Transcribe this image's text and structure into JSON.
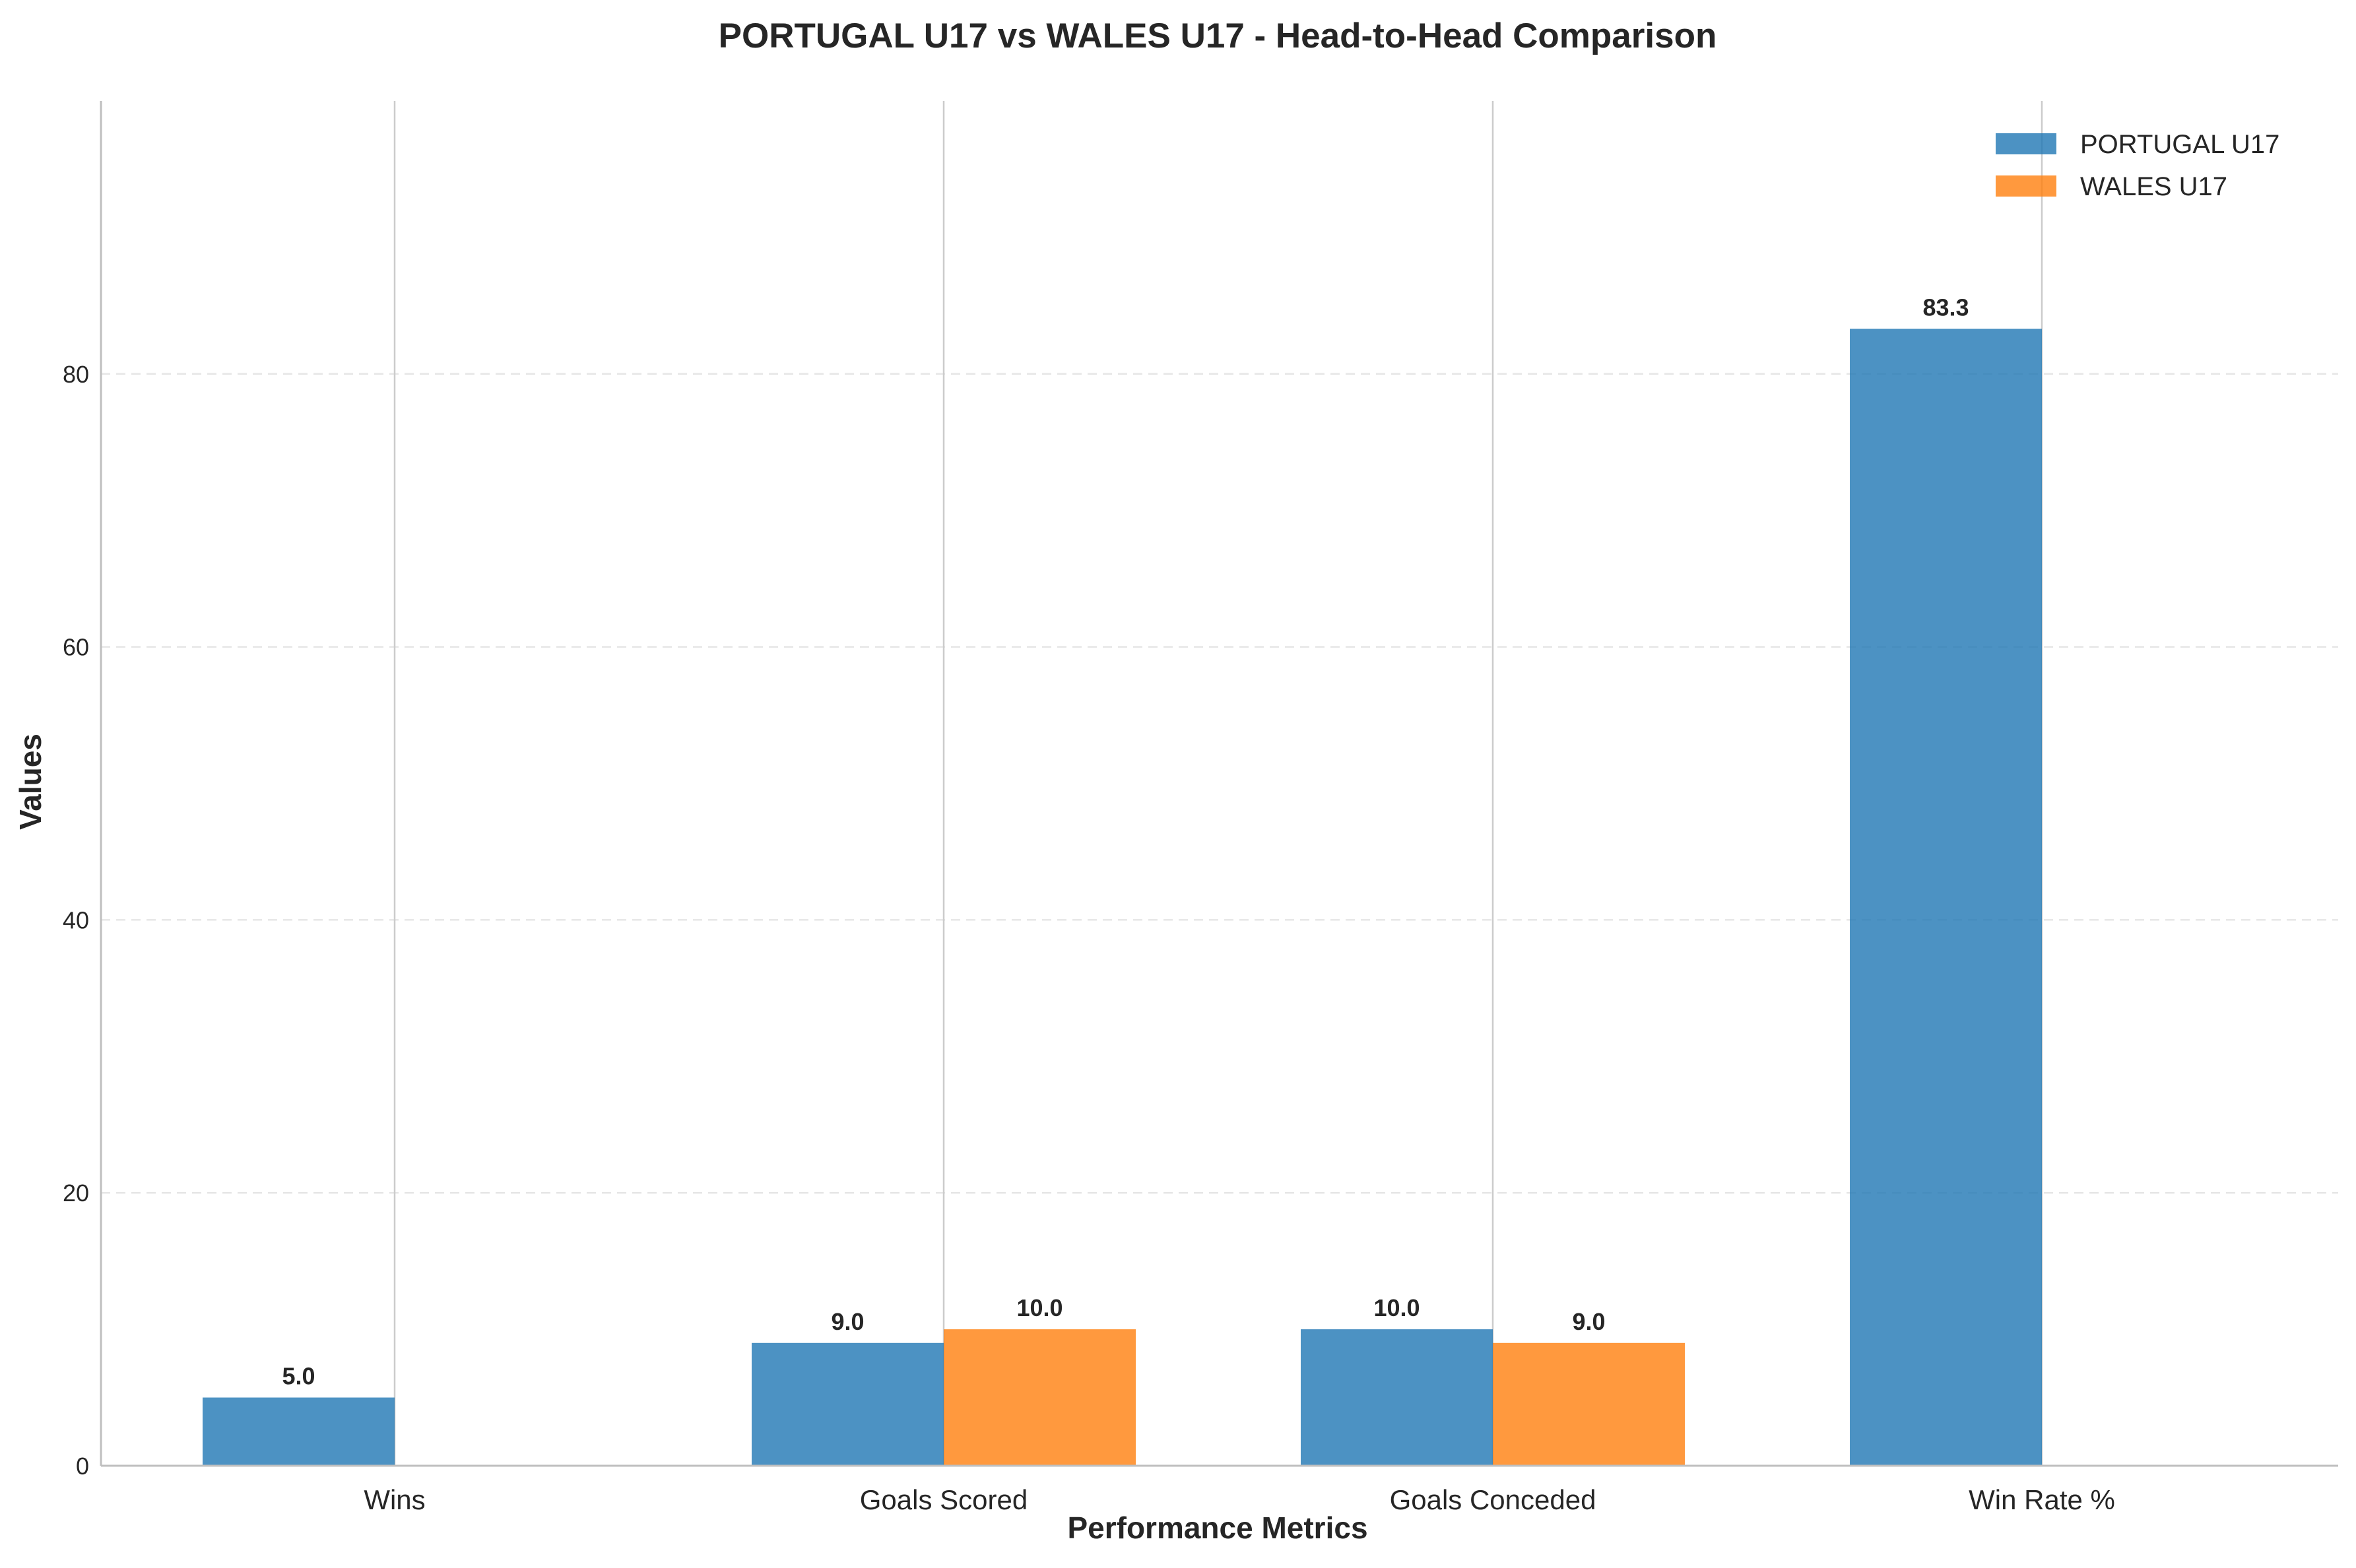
{
  "chart_data": {
    "type": "bar",
    "title": "PORTUGAL U17 vs WALES U17 - Head-to-Head Comparison",
    "xlabel": "Performance Metrics",
    "ylabel": "Values",
    "categories": [
      "Wins",
      "Goals Scored",
      "Goals Conceded",
      "Win Rate %"
    ],
    "series": [
      {
        "name": "PORTUGAL U17",
        "color": "#1f77b4",
        "values": [
          5.0,
          9.0,
          10.0,
          83.3
        ],
        "labels": [
          "5.0",
          "9.0",
          "10.0",
          "83.3"
        ]
      },
      {
        "name": "WALES U17",
        "color": "#ff7f0e",
        "values": [
          0,
          10.0,
          9.0,
          0
        ],
        "labels": [
          "",
          "10.0",
          "9.0",
          ""
        ]
      }
    ],
    "ylim": [
      0,
      100
    ],
    "yticks": [
      0,
      20,
      40,
      60,
      80
    ],
    "ytick_labels": [
      "0",
      "20",
      "40",
      "60",
      "80"
    ],
    "grid": "y-dashed",
    "legend_position": "top-right"
  }
}
